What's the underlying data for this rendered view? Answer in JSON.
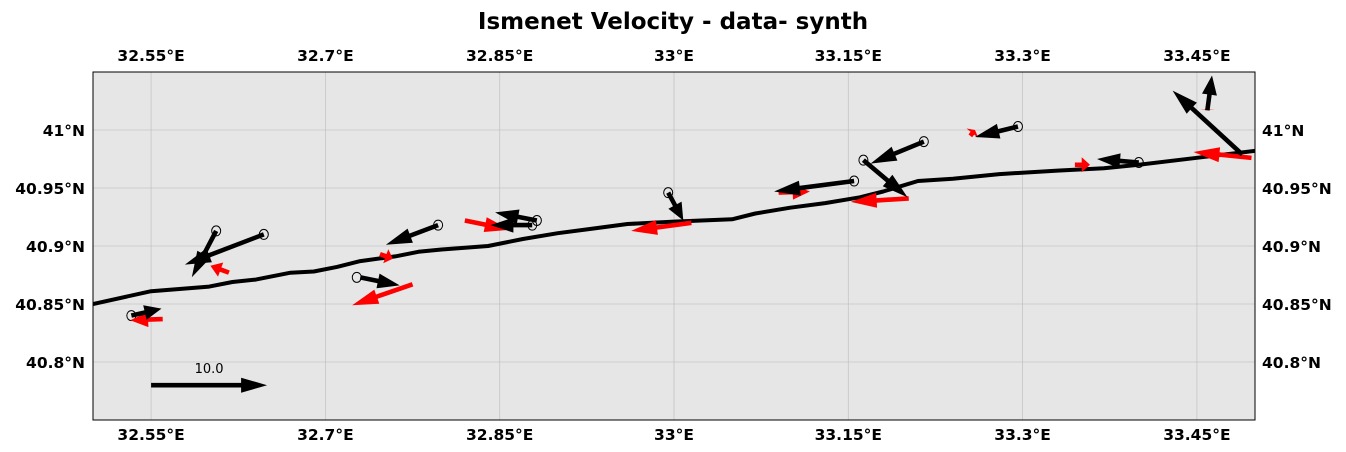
{
  "title": "Ismenet Velocity - data- synth",
  "map": {
    "projection": "PlateCarree",
    "lon_range": [
      32.5,
      33.5
    ],
    "lat_range": [
      40.75,
      41.05
    ],
    "background": "#e6e6e6",
    "gridlines": true,
    "lon_ticks": [
      32.55,
      32.7,
      32.85,
      33.0,
      33.15,
      33.3,
      33.45
    ],
    "lat_ticks": [
      40.8,
      40.85,
      40.9,
      40.95,
      41.0
    ],
    "lon_tick_labels": [
      "32.55°E",
      "32.7°E",
      "32.85°E",
      "33°E",
      "33.15°E",
      "33.3°E",
      "33.45°E"
    ],
    "lat_tick_labels": [
      "40.8°N",
      "40.85°N",
      "40.9°N",
      "40.95°N",
      "41°N"
    ]
  },
  "coastline": [
    [
      32.5,
      40.85
    ],
    [
      32.55,
      40.861
    ],
    [
      32.6,
      40.865
    ],
    [
      32.62,
      40.869
    ],
    [
      32.64,
      40.871
    ],
    [
      32.67,
      40.877
    ],
    [
      32.69,
      40.878
    ],
    [
      32.71,
      40.882
    ],
    [
      32.73,
      40.887
    ],
    [
      32.76,
      40.891
    ],
    [
      32.78,
      40.895
    ],
    [
      32.8,
      40.897
    ],
    [
      32.84,
      40.9
    ],
    [
      32.87,
      40.906
    ],
    [
      32.9,
      40.911
    ],
    [
      32.93,
      40.915
    ],
    [
      32.96,
      40.919
    ],
    [
      33.0,
      40.921
    ],
    [
      33.05,
      40.923
    ],
    [
      33.07,
      40.928
    ],
    [
      33.1,
      40.933
    ],
    [
      33.13,
      40.937
    ],
    [
      33.16,
      40.942
    ],
    [
      33.18,
      40.947
    ],
    [
      33.21,
      40.956
    ],
    [
      33.24,
      40.958
    ],
    [
      33.28,
      40.962
    ],
    [
      33.33,
      40.965
    ],
    [
      33.37,
      40.967
    ],
    [
      33.4,
      40.97
    ],
    [
      33.45,
      40.976
    ],
    [
      33.5,
      40.982
    ]
  ],
  "chart_data": {
    "type": "quiver",
    "title": "Ismenet Velocity - data- synth",
    "xlabel": "",
    "ylabel": "",
    "xlim": [
      32.5,
      33.5
    ],
    "ylim": [
      40.75,
      41.05
    ],
    "grid": true,
    "series": [
      {
        "color": "#000000",
        "vectors": [
          {
            "lon": 32.533,
            "lat": 40.84,
            "u": 2.6,
            "v": 0.6
          },
          {
            "lon": 32.606,
            "lat": 40.913,
            "u": -2.1,
            "v": -4.0
          },
          {
            "lon": 32.647,
            "lat": 40.91,
            "u": -6.8,
            "v": -2.6
          },
          {
            "lon": 32.73,
            "lat": 40.873,
            "u": 3.4,
            "v": -0.7
          },
          {
            "lon": 32.797,
            "lat": 40.918,
            "u": -4.5,
            "v": -1.7
          },
          {
            "lon": 32.882,
            "lat": 40.922,
            "u": -3.6,
            "v": 0.7
          },
          {
            "lon": 32.878,
            "lat": 40.918,
            "u": -3.6,
            "v": 0.0
          },
          {
            "lon": 32.995,
            "lat": 40.946,
            "u": 1.3,
            "v": -2.4
          },
          {
            "lon": 33.155,
            "lat": 40.956,
            "u": -6.9,
            "v": -0.9
          },
          {
            "lon": 33.163,
            "lat": 40.974,
            "u": 3.8,
            "v": -3.2
          },
          {
            "lon": 33.215,
            "lat": 40.99,
            "u": -4.6,
            "v": -1.9
          },
          {
            "lon": 33.296,
            "lat": 41.003,
            "u": -3.7,
            "v": -0.9
          },
          {
            "lon": 33.4,
            "lat": 40.972,
            "u": -3.6,
            "v": 0.3
          },
          {
            "lon": 33.489,
            "lat": 40.979,
            "u": -6.0,
            "v": 5.5
          },
          {
            "lon": 33.459,
            "lat": 41.017,
            "u": 0.4,
            "v": 3.0
          }
        ]
      },
      {
        "color": "#ff0000",
        "vectors": [
          {
            "lon": 32.56,
            "lat": 40.837,
            "u": -2.8,
            "v": -0.1
          },
          {
            "lon": 32.617,
            "lat": 40.877,
            "u": -1.6,
            "v": 0.6
          },
          {
            "lon": 32.775,
            "lat": 40.867,
            "u": -5.2,
            "v": -1.8
          },
          {
            "lon": 32.747,
            "lat": 40.893,
            "u": 1.1,
            "v": -0.4
          },
          {
            "lon": 32.82,
            "lat": 40.922,
            "u": 3.9,
            "v": -0.8
          },
          {
            "lon": 33.015,
            "lat": 40.92,
            "u": -5.2,
            "v": -0.7
          },
          {
            "lon": 33.09,
            "lat": 40.946,
            "u": 2.7,
            "v": 0.1
          },
          {
            "lon": 33.202,
            "lat": 40.941,
            "u": -5.0,
            "v": -0.3
          },
          {
            "lon": 33.345,
            "lat": 40.97,
            "u": 1.3,
            "v": 0.0
          },
          {
            "lon": 33.255,
            "lat": 40.995,
            "u": 0.4,
            "v": 0.5
          },
          {
            "lon": 33.497,
            "lat": 40.976,
            "u": -5.0,
            "v": 0.5
          },
          {
            "lon": 33.459,
            "lat": 41.017,
            "u": 0.0,
            "v": 0.1
          }
        ]
      }
    ],
    "ellipses": [
      {
        "lon": 32.533,
        "lat": 40.84
      },
      {
        "lon": 32.606,
        "lat": 40.913
      },
      {
        "lon": 32.647,
        "lat": 40.91
      },
      {
        "lon": 32.727,
        "lat": 40.873
      },
      {
        "lon": 32.797,
        "lat": 40.918
      },
      {
        "lon": 32.882,
        "lat": 40.922
      },
      {
        "lon": 32.878,
        "lat": 40.918
      },
      {
        "lon": 32.995,
        "lat": 40.946
      },
      {
        "lon": 33.155,
        "lat": 40.956
      },
      {
        "lon": 33.163,
        "lat": 40.974
      },
      {
        "lon": 33.215,
        "lat": 40.99
      },
      {
        "lon": 33.296,
        "lat": 41.003
      },
      {
        "lon": 33.4,
        "lat": 40.972
      }
    ],
    "key": {
      "label": "10.0",
      "value": 10.0,
      "lon": 32.55,
      "lat": 40.78
    }
  }
}
